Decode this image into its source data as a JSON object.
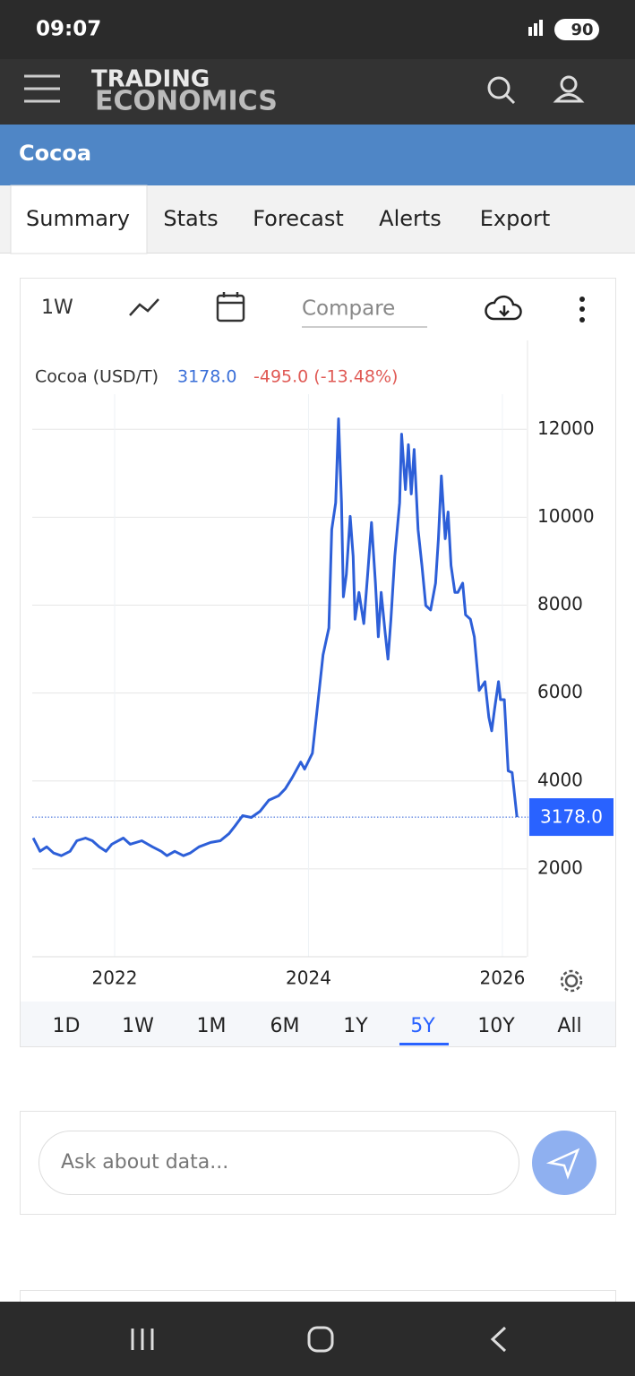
{
  "status_bar": {
    "time": "09:07",
    "battery": "90"
  },
  "header": {
    "logo_top": "TRADING",
    "logo_bottom": "ECONOMICS"
  },
  "page_title": "Cocoa",
  "tabs": [
    {
      "label": "Summary",
      "active": true
    },
    {
      "label": "Stats",
      "active": false
    },
    {
      "label": "Forecast",
      "active": false
    },
    {
      "label": "Alerts",
      "active": false
    },
    {
      "label": "Export",
      "active": false
    }
  ],
  "toolbar": {
    "interval": "1W",
    "compare_placeholder": "Compare"
  },
  "chart_data": {
    "type": "line",
    "last_value_label": "3178.0",
    "change": "-495.0 (-13.48%)",
    "x": [
      2021.16,
      2021.23,
      2021.3,
      2021.37,
      2021.45,
      2021.54,
      2021.61,
      2021.7,
      2021.77,
      2021.84,
      2021.91,
      2021.97,
      2022.09,
      2022.16,
      2022.28,
      2022.39,
      2022.48,
      2022.54,
      2022.62,
      2022.71,
      2022.78,
      2022.87,
      2022.99,
      2023.09,
      2023.18,
      2023.24,
      2023.32,
      2023.41,
      2023.5,
      2023.59,
      2023.69,
      2023.76,
      2023.83,
      2023.92,
      2023.96,
      2024.04,
      2024.1,
      2024.15,
      2024.21,
      2024.24,
      2024.28,
      2024.31,
      2024.34,
      2024.36,
      2024.39,
      2024.43,
      2024.46,
      2024.48,
      2024.52,
      2024.57,
      2024.61,
      2024.65,
      2024.69,
      2024.72,
      2024.75,
      2024.79,
      2024.82,
      2024.85,
      2024.89,
      2024.94,
      2024.96,
      2025.0,
      2025.03,
      2025.06,
      2025.09,
      2025.13,
      2025.17,
      2025.21,
      2025.26,
      2025.31,
      2025.34,
      2025.37,
      2025.41,
      2025.44,
      2025.47,
      2025.51,
      2025.54,
      2025.59,
      2025.62,
      2025.67,
      2025.71,
      2025.76,
      2025.82,
      2025.86,
      2025.89,
      2025.92,
      2025.96,
      2025.98,
      2026.02,
      2026.06,
      2026.1,
      2026.15
    ],
    "series": [
      {
        "name": "Cocoa (USD/T)",
        "color": "#2d5fd8",
        "values": [
          2703,
          2400,
          2500,
          2360,
          2300,
          2400,
          2640,
          2700,
          2640,
          2500,
          2400,
          2560,
          2700,
          2560,
          2640,
          2500,
          2400,
          2300,
          2400,
          2300,
          2360,
          2500,
          2600,
          2640,
          2800,
          2970,
          3210,
          3170,
          3310,
          3560,
          3660,
          3820,
          4070,
          4430,
          4270,
          4630,
          5850,
          6870,
          7480,
          9720,
          10330,
          12240,
          10330,
          8190,
          8700,
          10020,
          9110,
          7680,
          8290,
          7580,
          8700,
          9880,
          8500,
          7280,
          8290,
          7380,
          6770,
          7680,
          9110,
          10330,
          11890,
          10630,
          11650,
          10530,
          11540,
          9720,
          8900,
          7990,
          7890,
          8500,
          9510,
          10940,
          9510,
          10120,
          8900,
          8290,
          8290,
          8500,
          7780,
          7680,
          7280,
          6060,
          6260,
          5450,
          5140,
          5650,
          6260,
          5850,
          5850,
          4230,
          4190,
          3178
        ]
      }
    ],
    "xlim": [
      2021.15,
      2026.25
    ],
    "xticks": [
      2022,
      2024,
      2026
    ],
    "ylim": [
      0,
      12800
    ],
    "yticks": [
      2000,
      4000,
      6000,
      8000,
      10000,
      12000
    ],
    "grid": true
  },
  "ranges": [
    {
      "label": "1D",
      "active": false
    },
    {
      "label": "1W",
      "active": false
    },
    {
      "label": "1M",
      "active": false
    },
    {
      "label": "6M",
      "active": false
    },
    {
      "label": "1Y",
      "active": false
    },
    {
      "label": "5Y",
      "active": true
    },
    {
      "label": "10Y",
      "active": false
    },
    {
      "label": "All",
      "active": false
    }
  ],
  "chat": {
    "placeholder": "Ask about data..."
  }
}
